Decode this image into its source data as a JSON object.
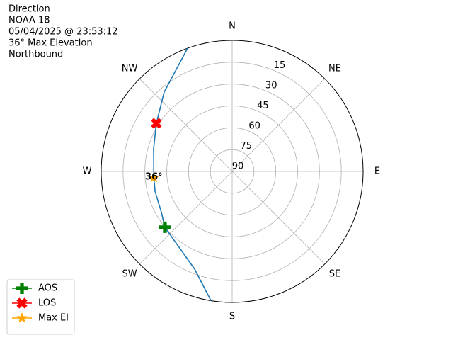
{
  "chart_data": {
    "type": "polar",
    "info": [
      "Direction",
      "NOAA 18",
      "05/04/2025 @ 23:53:12",
      "36° Max Elevation",
      "Northbound"
    ],
    "thetaticks": [
      {
        "value": 0,
        "label": "N"
      },
      {
        "value": 45,
        "label": "NE"
      },
      {
        "value": 90,
        "label": "E"
      },
      {
        "value": 135,
        "label": "SE"
      },
      {
        "value": 180,
        "label": "S"
      },
      {
        "value": 225,
        "label": "SW"
      },
      {
        "value": 270,
        "label": "W"
      },
      {
        "value": 315,
        "label": "NW"
      }
    ],
    "rlim": [
      90,
      0
    ],
    "rticks": [
      15,
      30,
      45,
      60,
      75,
      90
    ],
    "grid": true,
    "track": {
      "color": "#1f77b4",
      "azimuth": [
        189.3,
        201,
        230.3,
        239.9,
        255.6,
        265.4,
        286.1,
        302.4,
        319.4,
        340.1
      ],
      "elevation": [
        0,
        18.1,
        29.9,
        33.8,
        35.3,
        36,
        33.8,
        28.3,
        18.2,
        0
      ]
    },
    "markers": [
      {
        "name": "AOS",
        "color": "#008000",
        "marker": "plus",
        "azimuth": 230.3,
        "elevation": 29.9
      },
      {
        "name": "LOS",
        "color": "#ff0000",
        "marker": "x",
        "azimuth": 302.4,
        "elevation": 28.3
      },
      {
        "name": "Max El",
        "color": "#ffa500",
        "marker": "star",
        "azimuth": 265.4,
        "elevation": 36,
        "value_label": "36°"
      }
    ],
    "legend": "lower left"
  }
}
